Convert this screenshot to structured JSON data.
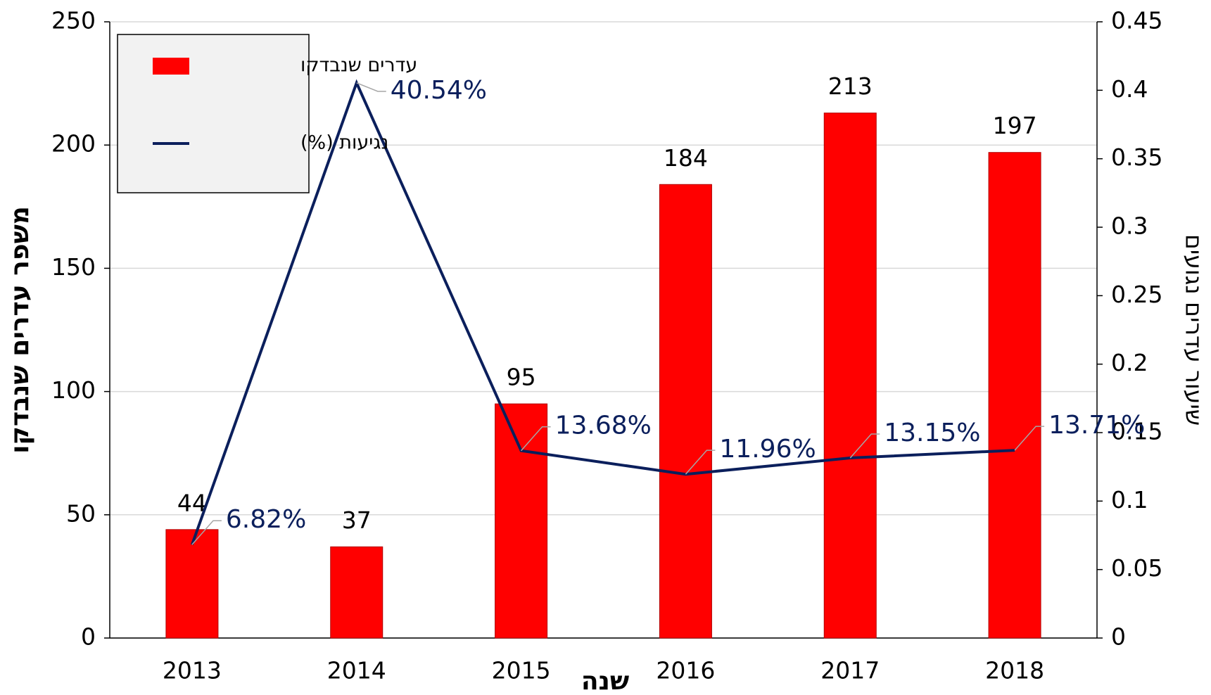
{
  "chart_data": {
    "type": "bar_line",
    "x_label": "שנה",
    "y_label": "משפר עדרים שנבדקו",
    "y2_label": "שיעור עדרים נגועים",
    "categories": [
      "2013",
      "2014",
      "2015",
      "2016",
      "2017",
      "2018"
    ],
    "series": [
      {
        "name": "עדרים שנבדקו",
        "type": "bar",
        "color": "#ff0000",
        "values": [
          44,
          37,
          95,
          184,
          213,
          197
        ]
      },
      {
        "name": "נגיעות (%)",
        "type": "line",
        "axis": "y2",
        "color": "#0b1f5c",
        "values": [
          0.0682,
          0.4054,
          0.1368,
          0.1196,
          0.1315,
          0.1371
        ],
        "value_labels": [
          "6.82%",
          "40.54%",
          "13.68%",
          "11.96%",
          "13.15%",
          "13.71%"
        ]
      }
    ],
    "ylim": [
      0,
      250
    ],
    "yticks": [
      0,
      50,
      100,
      150,
      200,
      250
    ],
    "y2lim": [
      0,
      0.45
    ],
    "y2ticks": [
      0,
      0.05,
      0.1,
      0.15,
      0.2,
      0.25,
      0.3,
      0.35,
      0.4,
      0.45
    ],
    "grid": true,
    "legend": "upper left"
  }
}
